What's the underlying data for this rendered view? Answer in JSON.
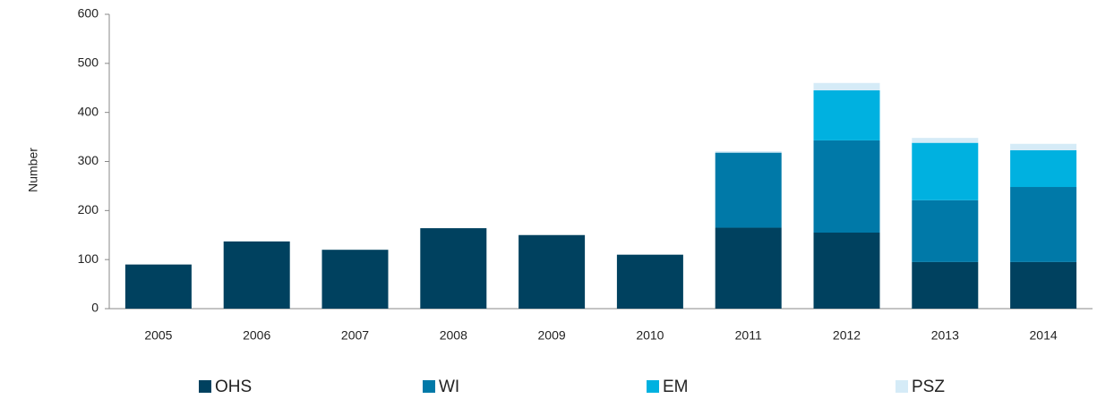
{
  "chart_data": {
    "type": "stacked_bar",
    "y_label": "Number",
    "categories": [
      "2005",
      "2006",
      "2007",
      "2008",
      "2009",
      "2010",
      "2011",
      "2012",
      "2013",
      "2014"
    ],
    "series": [
      {
        "name": "OHS",
        "color": "#00415f",
        "values": [
          90,
          137,
          120,
          164,
          150,
          110,
          165,
          155,
          95,
          95
        ]
      },
      {
        "name": "WI",
        "color": "#0079a8",
        "values": [
          0,
          0,
          0,
          0,
          0,
          0,
          153,
          188,
          126,
          153
        ]
      },
      {
        "name": "EM",
        "color": "#00b1e0",
        "values": [
          0,
          0,
          0,
          0,
          0,
          0,
          0,
          102,
          117,
          75
        ]
      },
      {
        "name": "PSZ",
        "color": "#d5ebf7",
        "values": [
          0,
          0,
          0,
          0,
          0,
          0,
          3,
          15,
          10,
          13
        ]
      }
    ],
    "ylim": [
      0,
      600
    ],
    "yticks": [
      0,
      100,
      200,
      300,
      400,
      500,
      600
    ],
    "grid": false
  }
}
